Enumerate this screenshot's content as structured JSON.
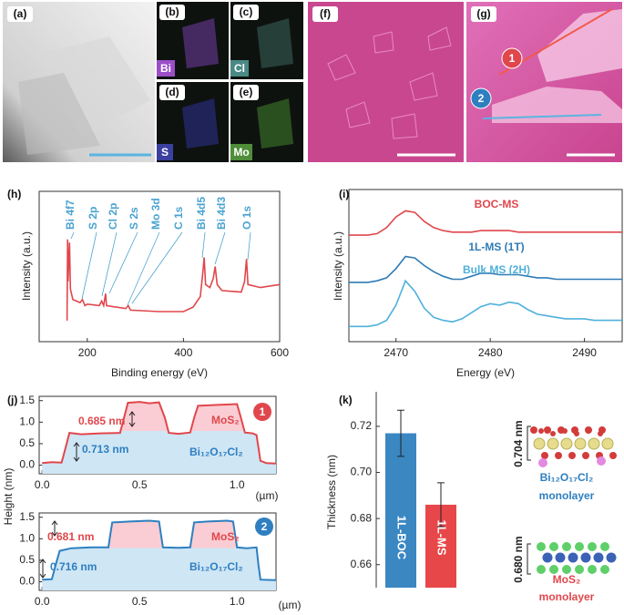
{
  "panel_labels": [
    "(a)",
    "(b)",
    "(c)",
    "(d)",
    "(e)",
    "(f)",
    "(g)"
  ],
  "map_labels": [
    "Bi",
    "Cl",
    "S",
    "Mo"
  ],
  "afm_markers": [
    "1",
    "2"
  ],
  "structures": {
    "boc": {
      "thickness": "0.704 nm",
      "formula": "Bi₁₂O₁₇Cl₂",
      "caption": "monolayer"
    },
    "ms": {
      "thickness": "0.680 nm",
      "formula": "MoS₂",
      "caption": "monolayer"
    }
  },
  "chart_data": [
    {
      "type": "line",
      "label": "(h)",
      "xlabel": "Binding energy (eV)",
      "ylabel": "Intensity (a.u.)",
      "xlim": [
        100,
        600
      ],
      "ylim": [
        0,
        100
      ],
      "xticks": [
        200,
        400,
        600
      ],
      "x": [
        158,
        159,
        160,
        163,
        165,
        170,
        185,
        190,
        195,
        200,
        225,
        230,
        234,
        238,
        240,
        280,
        285,
        290,
        350,
        400,
        420,
        435,
        440,
        443,
        446,
        455,
        462,
        466,
        470,
        480,
        520,
        527,
        531,
        534,
        560,
        600
      ],
      "series": [
        {
          "color": "#e0474c",
          "values": [
            14,
            68,
            40,
            66,
            35,
            28,
            26,
            28,
            24,
            25,
            24,
            27,
            24,
            32,
            24,
            22,
            24,
            21,
            20,
            20,
            23,
            30,
            45,
            56,
            38,
            36,
            42,
            50,
            38,
            34,
            33,
            40,
            55,
            38,
            36,
            38
          ]
        }
      ],
      "annotations": [
        "Bi 4f7",
        "S 2p",
        "Cl 2p",
        "S 2s",
        "Mo 3d",
        "C 1s",
        "Bi 4d5",
        "Bi 4d3",
        "O 1s"
      ],
      "annotation_color": "#4aa3d0"
    },
    {
      "type": "line",
      "label": "(i)",
      "xlabel": "Energy (eV)",
      "ylabel": "Intensity (a.u.)",
      "xlim": [
        2465,
        2494
      ],
      "ylim": [
        0,
        100
      ],
      "xticks": [
        2470,
        2480,
        2490
      ],
      "x": [
        2465,
        2466,
        2467,
        2468,
        2469,
        2470,
        2471,
        2472,
        2473,
        2474,
        2475,
        2476,
        2477,
        2478,
        2479,
        2480,
        2481,
        2482,
        2483,
        2484,
        2485,
        2486,
        2487,
        2488,
        2489,
        2490,
        2491,
        2492,
        2493,
        2494
      ],
      "series": [
        {
          "name": "BOC-MS",
          "color": "#e0474c",
          "values": [
            70,
            70,
            70,
            71,
            75,
            82,
            86,
            85,
            79,
            75,
            73,
            72,
            72,
            72,
            73,
            73,
            73,
            73,
            72,
            72,
            72,
            72,
            72,
            72,
            72,
            72,
            72,
            72,
            72,
            72
          ]
        },
        {
          "name": "1L-MS (1T)",
          "color": "#2f7bb5",
          "values": [
            39,
            39,
            39,
            40,
            42,
            48,
            56,
            55,
            50,
            46,
            43,
            41,
            41,
            43,
            45,
            45,
            44,
            44,
            44,
            43,
            42,
            42,
            41,
            41,
            41,
            41,
            41,
            41,
            41,
            41
          ]
        },
        {
          "name": "Bulk MS (2H)",
          "color": "#4fb0dc",
          "values": [
            10,
            10,
            10,
            11,
            14,
            24,
            40,
            33,
            22,
            16,
            14,
            13,
            15,
            19,
            23,
            25,
            24,
            26,
            25,
            21,
            18,
            17,
            16,
            15,
            15,
            15,
            14,
            14,
            14,
            14
          ]
        }
      ]
    },
    {
      "type": "line",
      "label": "(j)",
      "ylabel": "Height (nm)",
      "xlabel": "(µm)",
      "xlim": [
        -0.015,
        1.2
      ],
      "ylim": [
        -0.2,
        1.6
      ],
      "xticks": [
        {
          "value": 0,
          "label": "0.0"
        },
        0.5,
        {
          "value": 1,
          "label": "1.0"
        }
      ],
      "yticks": [
        {
          "value": 0,
          "label": "0.0"
        },
        0.5,
        {
          "value": 1,
          "label": "1.0"
        },
        1.5
      ],
      "x": [
        0,
        0.05,
        0.1,
        0.12,
        0.14,
        0.2,
        0.3,
        0.4,
        0.42,
        0.44,
        0.5,
        0.55,
        0.6,
        0.63,
        0.65,
        0.7,
        0.76,
        0.78,
        0.8,
        0.9,
        1.0,
        1.02,
        1.04,
        1.08,
        1.1,
        1.12,
        1.15,
        1.2
      ],
      "series": [
        {
          "color": "#e0474c",
          "values": [
            0.05,
            0.07,
            0.06,
            0.4,
            0.75,
            0.72,
            0.74,
            0.75,
            1.1,
            1.45,
            1.47,
            1.44,
            1.46,
            1.1,
            0.75,
            0.73,
            0.76,
            1.1,
            1.38,
            1.4,
            1.42,
            1.1,
            0.76,
            0.74,
            0.7,
            0.1,
            0.05,
            0.04
          ]
        }
      ],
      "annotations": [
        "0.685 nm",
        "MoS₂",
        "0.713 nm",
        "Bi₁₂O₁₇Cl₂"
      ]
    },
    {
      "type": "line",
      "xlabel": "(µm)",
      "xlim": [
        -0.015,
        1.2
      ],
      "ylim": [
        -0.2,
        1.6
      ],
      "xticks": [
        {
          "value": 0,
          "label": "0.0"
        },
        0.5,
        {
          "value": 1,
          "label": "1.0"
        }
      ],
      "yticks": [
        {
          "value": 0,
          "label": "0.0"
        },
        0.5,
        {
          "value": 1,
          "label": "1.0"
        },
        1.5
      ],
      "x": [
        0,
        0.05,
        0.07,
        0.09,
        0.15,
        0.25,
        0.34,
        0.35,
        0.36,
        0.45,
        0.55,
        0.6,
        0.61,
        0.62,
        0.7,
        0.76,
        0.77,
        0.78,
        0.85,
        0.95,
        0.98,
        0.99,
        1.0,
        1.05,
        1.1,
        1.11,
        1.12,
        1.2
      ],
      "series": [
        {
          "color": "#2e7fc0",
          "values": [
            0.05,
            0.06,
            0.4,
            0.72,
            0.78,
            0.8,
            0.8,
            1.1,
            1.38,
            1.4,
            1.42,
            1.4,
            1.1,
            0.8,
            0.79,
            0.8,
            1.1,
            1.38,
            1.4,
            1.42,
            1.4,
            1.1,
            0.8,
            0.78,
            0.8,
            0.4,
            0.05,
            0.04
          ]
        }
      ],
      "annotations": [
        "0.681 nm",
        "MoS₂",
        "0.716 nm",
        "Bi₁₂O₁₇Cl₂"
      ]
    },
    {
      "type": "bar",
      "label": "(k)",
      "ylabel": "Thickness (nm)",
      "categories": [
        "1L-BOC",
        "1L-MS"
      ],
      "values": [
        0.717,
        0.686
      ],
      "errors": [
        0.01,
        0.0095
      ],
      "colors": [
        "#3a87c2",
        "#e8474a"
      ],
      "ylim": [
        0.65,
        0.735
      ],
      "yticks": [
        0.66,
        0.68,
        {
          "value": 0.7,
          "label": "0.70"
        },
        0.72
      ]
    }
  ]
}
